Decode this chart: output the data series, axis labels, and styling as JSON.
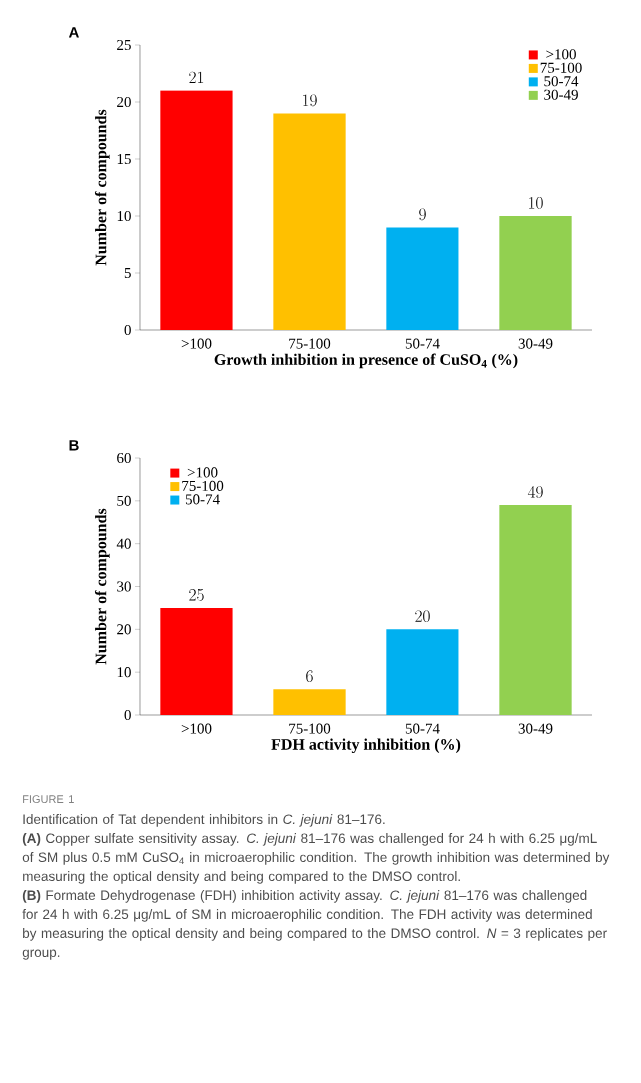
{
  "chart_data": [
    {
      "type": "bar",
      "title": "A",
      "xlabel": "Growth inhibition in presence of CuSO$_{4}$ (%)",
      "ylabel": "Number of compounds",
      "categories": [
        ">100",
        "75-100",
        "50-74",
        "30-49"
      ],
      "series": [
        {
          "name": ">100",
          "color": "#ff0000",
          "values": [
            21,
            null,
            null,
            null
          ]
        },
        {
          "name": "75-100",
          "color": "#ffc000",
          "values": [
            null,
            19,
            null,
            null
          ]
        },
        {
          "name": "50-74",
          "color": "#00b0f0",
          "values": [
            null,
            null,
            9,
            null
          ]
        },
        {
          "name": "30-49",
          "color": "#92d050",
          "values": [
            null,
            null,
            null,
            10
          ]
        }
      ],
      "ylim": [
        0,
        25
      ],
      "yticks": [
        0,
        5,
        10,
        15,
        20,
        25
      ],
      "data_labels": true,
      "legend": "top right"
    },
    {
      "type": "bar",
      "title": "B",
      "xlabel": "FDH activity inhibition (%)",
      "ylabel": "Number of compounds",
      "categories": [
        ">100",
        "75-100",
        "50-74",
        "30-49"
      ],
      "series": [
        {
          "name": ">100",
          "color": "#ff0000",
          "values": [
            25,
            null,
            null,
            null
          ]
        },
        {
          "name": "75-100",
          "color": "#ffc000",
          "values": [
            null,
            6,
            null,
            null
          ]
        },
        {
          "name": "50-74",
          "color": "#00b0f0",
          "values": [
            null,
            null,
            20,
            null
          ]
        },
        {
          "color": "#92d050",
          "values": [
            null,
            null,
            null,
            49
          ]
        }
      ],
      "ylim": [
        0,
        60
      ],
      "yticks": [
        0,
        10,
        20,
        30,
        40,
        50,
        60
      ],
      "data_labels": true,
      "legend": "top left",
      "annotations": [
        "FIGURE 1",
        "Identification of Tat dependent inhibitors in *C. jejuni* 81–176.",
        "**(A)** Copper sulfate sensitivity assay. *C. jejuni* 81–176 was challenged for 24 h with 6.25 μg/mL of SM plus 0.5 mM CuSO$_{4}$ in microaerophilic condition. The growth inhibition was determined by measuring the optical density and being compared to the DMSO control.",
        "**(B)** Formate Dehydrogenase (FDH) inhibition activity assay. *C. jejuni* 81–176 was challenged for 24 h with 6.25 μg/mL of SM in microaerophilic condition. The FDH activity was determined by measuring the optical density and being compared to the DMSO control. *N* = 3 replicates per group."
      ]
    }
  ]
}
